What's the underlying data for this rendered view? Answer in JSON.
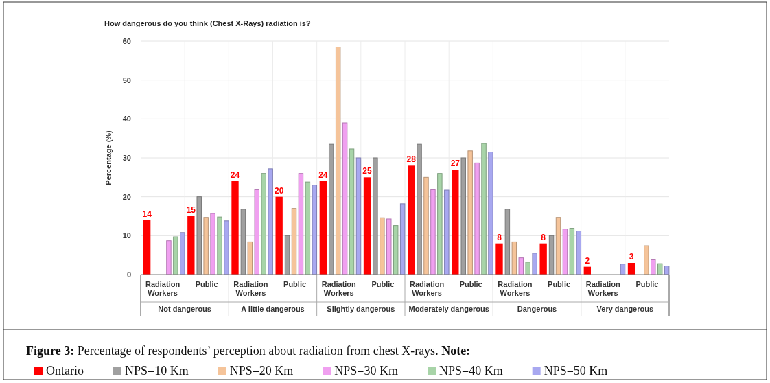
{
  "chart_data": {
    "type": "bar",
    "title": "How dangerous do you think (Chest X-Rays) radiation is?",
    "ylabel": "Percentage (%)",
    "categories": [
      "Radiation Workers",
      "Public",
      "Radiation Workers",
      "Public",
      "Radiation Workers",
      "Public",
      "Radiation Workers",
      "Public",
      "Radiation Workers",
      "Public",
      "Radiation Workers",
      "Public"
    ],
    "series": [
      {
        "name": "Ontario",
        "color": "#ff0000",
        "values": [
          14,
          15,
          24,
          20,
          24,
          25,
          28,
          27,
          8,
          8,
          2,
          3
        ],
        "value_labels": [
          "14",
          "15",
          "24",
          "20",
          "24",
          "25",
          "28",
          "27",
          "8",
          "8",
          "2",
          "3"
        ]
      },
      {
        "name": "NPS=10 Km",
        "color": "#a0a0a0",
        "values": [
          0,
          20,
          16.8,
          10,
          33.5,
          30,
          33.5,
          30,
          16.8,
          10,
          0,
          0
        ]
      },
      {
        "name": "NPS=20 Km",
        "color": "#f5c49a",
        "values": [
          0,
          14.7,
          8.4,
          17,
          58.5,
          14.6,
          25,
          31.8,
          8.4,
          14.7,
          0,
          7.4
        ]
      },
      {
        "name": "NPS=30 Km",
        "color": "#f0a0f0",
        "values": [
          8.7,
          15.7,
          21.8,
          26,
          39,
          14.3,
          21.8,
          28.7,
          4.3,
          11.7,
          0,
          3.8
        ]
      },
      {
        "name": "NPS=40 Km",
        "color": "#a8d4a8",
        "values": [
          9.7,
          14.8,
          26,
          23.8,
          32.3,
          12.6,
          26,
          33.7,
          3.2,
          11.9,
          0,
          2.8
        ]
      },
      {
        "name": "NPS=50 Km",
        "color": "#a8a8f0",
        "values": [
          10.8,
          13.8,
          27.2,
          23,
          30,
          18.2,
          21.7,
          31.5,
          5.5,
          11.2,
          2.7,
          2.2
        ]
      }
    ],
    "ylim": [
      0,
      60
    ],
    "yticks": [
      0,
      10,
      20,
      30,
      40,
      50,
      60
    ],
    "grid": "y",
    "legend": "bottom",
    "annotations": [
      "Not dangerous",
      "A little dangerous",
      "Slightly dangerous",
      "Moderately dangerous",
      "Dangerous",
      "Very dangerous",
      "Figure 3: Percentage of respondents’ perception about radiation from chest X-rays. Note:"
    ]
  }
}
